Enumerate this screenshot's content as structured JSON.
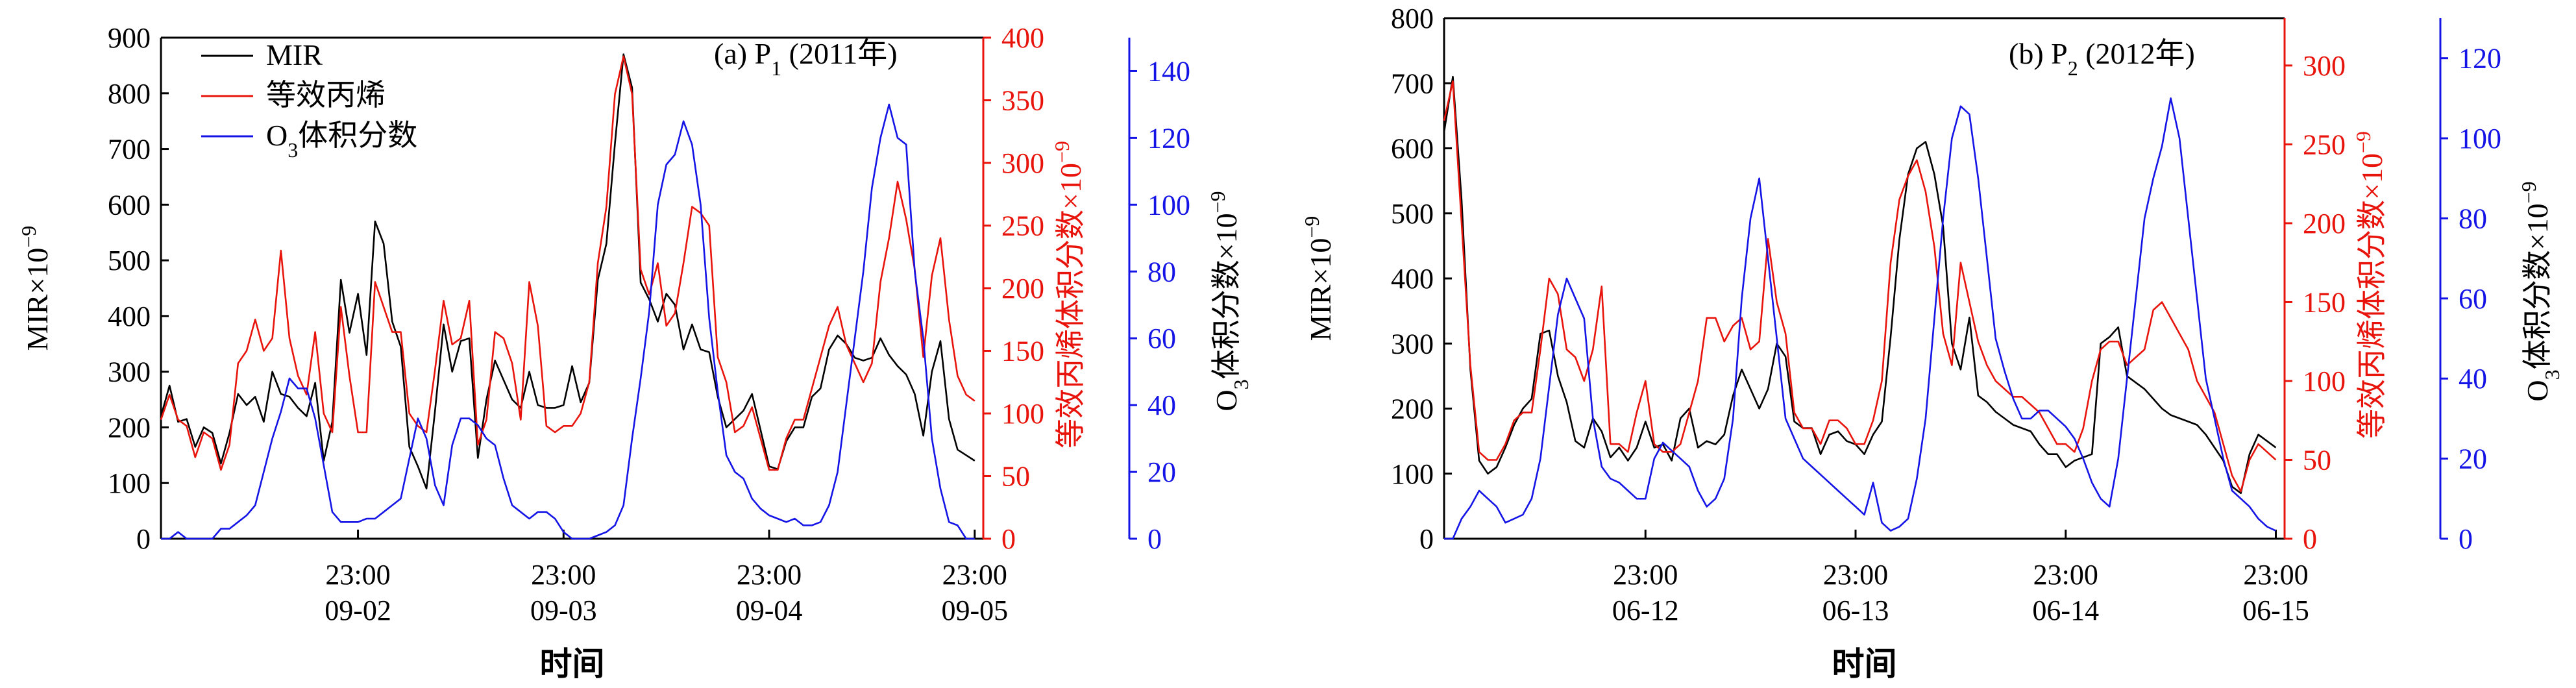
{
  "figure": {
    "xlabel": "时间"
  },
  "chart_data": [
    {
      "type": "line",
      "title": "(a) P",
      "title_sub": "1",
      "title_tail": " (2011年)",
      "x_ticks": [
        {
          "time": "23:00",
          "date": "09-02"
        },
        {
          "time": "23:00",
          "date": "09-03"
        },
        {
          "time": "23:00",
          "date": "09-04"
        },
        {
          "time": "23:00",
          "date": "09-05"
        }
      ],
      "xlim": [
        0,
        96
      ],
      "x_tick_positions": [
        23,
        47,
        71,
        95
      ],
      "axes": {
        "left": {
          "label": "MIR×10",
          "label_sup": "−9",
          "ylim": [
            0,
            900
          ],
          "ticks": [
            "0",
            "100",
            "200",
            "300",
            "400",
            "500",
            "600",
            "700",
            "800",
            "900"
          ],
          "color": "#000000"
        },
        "right1": {
          "label": "等效丙烯体积分数×10",
          "label_sup": "−9",
          "ylim": [
            0,
            400
          ],
          "ticks": [
            "0",
            "50",
            "100",
            "150",
            "200",
            "250",
            "300",
            "350",
            "400"
          ],
          "color": "#e8140c"
        },
        "right2": {
          "label_pre": "O",
          "label_sub": "3",
          "label": "体积分数×10",
          "label_sup": "−9",
          "ylim": [
            0,
            150
          ],
          "ticks": [
            "0",
            "20",
            "40",
            "60",
            "80",
            "100",
            "120",
            "140"
          ],
          "color": "#1414e6"
        }
      },
      "legend": {
        "placement": "top-left",
        "entries": [
          {
            "text": "MIR",
            "color": "#000000"
          },
          {
            "text": "等效丙烯",
            "color": "#e8140c"
          },
          {
            "pre": "O",
            "sub": "3",
            "text": "体积分数",
            "color": "#1414e6"
          }
        ]
      },
      "series": [
        {
          "name": "MIR",
          "axis": "left",
          "color": "#000000",
          "values": [
            220,
            275,
            210,
            215,
            165,
            200,
            190,
            135,
            190,
            260,
            240,
            255,
            210,
            300,
            260,
            255,
            235,
            220,
            280,
            140,
            210,
            465,
            370,
            440,
            330,
            570,
            530,
            390,
            345,
            165,
            130,
            90,
            230,
            385,
            300,
            355,
            360,
            145,
            250,
            320,
            285,
            250,
            235,
            300,
            240,
            235,
            235,
            240,
            310,
            245,
            280,
            465,
            530,
            710,
            870,
            810,
            460,
            430,
            390,
            440,
            420,
            340,
            385,
            340,
            335,
            255,
            200,
            215,
            230,
            260,
            195,
            130,
            125,
            175,
            200,
            200,
            255,
            270,
            340,
            365,
            350,
            325,
            320,
            325,
            360,
            330,
            310,
            295,
            260,
            185,
            300,
            355,
            215,
            160,
            150,
            140
          ]
        },
        {
          "name": "等效丙烯",
          "axis": "right1",
          "color": "#e8140c",
          "values": [
            95,
            115,
            95,
            90,
            65,
            85,
            80,
            55,
            75,
            140,
            150,
            175,
            150,
            160,
            230,
            160,
            130,
            115,
            165,
            100,
            85,
            185,
            130,
            85,
            85,
            205,
            185,
            165,
            165,
            100,
            90,
            85,
            135,
            190,
            155,
            160,
            190,
            75,
            95,
            165,
            160,
            140,
            95,
            205,
            170,
            90,
            85,
            90,
            90,
            100,
            125,
            220,
            265,
            355,
            385,
            355,
            215,
            195,
            220,
            170,
            180,
            220,
            265,
            260,
            250,
            145,
            125,
            85,
            90,
            105,
            80,
            55,
            55,
            80,
            95,
            95,
            120,
            145,
            170,
            185,
            155,
            140,
            125,
            140,
            205,
            240,
            285,
            255,
            215,
            145,
            210,
            240,
            175,
            130,
            115,
            110
          ]
        },
        {
          "name": "O3体积分数",
          "axis": "right2",
          "color": "#1414e6",
          "values": [
            0,
            0,
            2,
            0,
            0,
            0,
            0,
            3,
            3,
            5,
            7,
            10,
            20,
            30,
            38,
            48,
            45,
            45,
            36,
            22,
            8,
            5,
            5,
            5,
            6,
            6,
            8,
            10,
            12,
            24,
            36,
            30,
            16,
            10,
            28,
            36,
            36,
            34,
            30,
            28,
            18,
            10,
            8,
            6,
            8,
            8,
            6,
            2,
            0,
            0,
            0,
            1,
            2,
            4,
            10,
            30,
            48,
            68,
            100,
            112,
            115,
            125,
            118,
            100,
            66,
            44,
            25,
            20,
            18,
            12,
            9,
            7,
            6,
            5,
            6,
            4,
            4,
            5,
            10,
            20,
            40,
            60,
            80,
            105,
            120,
            130,
            120,
            118,
            80,
            60,
            30,
            15,
            5,
            4,
            0,
            0
          ]
        }
      ]
    },
    {
      "type": "line",
      "title": "(b) P",
      "title_sub": "2",
      "title_tail": " (2012年)",
      "x_ticks": [
        {
          "time": "23:00",
          "date": "06-12"
        },
        {
          "time": "23:00",
          "date": "06-13"
        },
        {
          "time": "23:00",
          "date": "06-14"
        },
        {
          "time": "23:00",
          "date": "06-15"
        }
      ],
      "xlim": [
        0,
        96
      ],
      "x_tick_positions": [
        23,
        47,
        71,
        95
      ],
      "axes": {
        "left": {
          "label": "MIR×10",
          "label_sup": "−9",
          "ylim": [
            0,
            800
          ],
          "ticks": [
            "0",
            "100",
            "200",
            "300",
            "400",
            "500",
            "600",
            "700",
            "800"
          ],
          "color": "#000000"
        },
        "right1": {
          "label": "等效丙烯体积分数×10",
          "label_sup": "−9",
          "ylim": [
            0,
            330
          ],
          "ticks": [
            "0",
            "50",
            "100",
            "150",
            "200",
            "250",
            "300"
          ],
          "color": "#e8140c"
        },
        "right2": {
          "label_pre": "O",
          "label_sub": "3",
          "label": "体积分数×10",
          "label_sup": "−9",
          "ylim": [
            0,
            130
          ],
          "ticks": [
            "0",
            "20",
            "40",
            "60",
            "80",
            "100",
            "120"
          ],
          "color": "#1414e6"
        }
      },
      "legend": null,
      "series": [
        {
          "name": "MIR",
          "axis": "left",
          "color": "#000000",
          "values": [
            625,
            710,
            520,
            260,
            120,
            100,
            110,
            140,
            175,
            200,
            215,
            315,
            320,
            250,
            210,
            150,
            140,
            185,
            165,
            125,
            140,
            120,
            140,
            180,
            140,
            145,
            120,
            185,
            200,
            140,
            150,
            145,
            160,
            220,
            260,
            230,
            200,
            230,
            300,
            280,
            180,
            170,
            170,
            130,
            160,
            165,
            150,
            145,
            130,
            160,
            180,
            310,
            460,
            560,
            600,
            610,
            560,
            480,
            300,
            260,
            340,
            220,
            210,
            195,
            185,
            175,
            170,
            165,
            145,
            130,
            130,
            110,
            120,
            125,
            130,
            300,
            310,
            325,
            250,
            240,
            230,
            215,
            200,
            190,
            185,
            180,
            175,
            160,
            140,
            120,
            80,
            70,
            130,
            160,
            150,
            140
          ]
        },
        {
          "name": "等效丙烯",
          "axis": "right1",
          "color": "#e8140c",
          "values": [
            265,
            290,
            200,
            110,
            55,
            50,
            50,
            60,
            75,
            80,
            80,
            120,
            165,
            155,
            120,
            115,
            100,
            120,
            160,
            60,
            60,
            55,
            80,
            100,
            60,
            55,
            55,
            60,
            80,
            100,
            140,
            140,
            125,
            135,
            140,
            120,
            125,
            190,
            150,
            130,
            80,
            70,
            70,
            60,
            75,
            75,
            70,
            60,
            60,
            75,
            100,
            175,
            215,
            230,
            240,
            220,
            185,
            130,
            110,
            175,
            150,
            125,
            110,
            100,
            95,
            90,
            90,
            85,
            80,
            70,
            60,
            60,
            55,
            70,
            100,
            120,
            125,
            125,
            110,
            115,
            120,
            145,
            150,
            140,
            130,
            120,
            100,
            90,
            80,
            60,
            40,
            30,
            50,
            60,
            55,
            50
          ]
        },
        {
          "name": "O3体积分数",
          "axis": "right2",
          "color": "#1414e6",
          "values": [
            0,
            0,
            5,
            8,
            12,
            10,
            8,
            4,
            5,
            6,
            10,
            20,
            38,
            56,
            65,
            60,
            55,
            30,
            18,
            15,
            14,
            12,
            10,
            10,
            20,
            24,
            22,
            20,
            18,
            12,
            8,
            10,
            15,
            30,
            60,
            80,
            90,
            70,
            50,
            30,
            25,
            20,
            18,
            16,
            14,
            12,
            10,
            8,
            6,
            14,
            4,
            2,
            3,
            5,
            15,
            30,
            55,
            80,
            100,
            108,
            106,
            90,
            70,
            50,
            42,
            35,
            30,
            30,
            32,
            32,
            30,
            28,
            25,
            20,
            14,
            10,
            8,
            20,
            40,
            60,
            80,
            90,
            98,
            110,
            100,
            80,
            60,
            40,
            30,
            20,
            12,
            10,
            8,
            5,
            3,
            2
          ]
        }
      ]
    }
  ]
}
